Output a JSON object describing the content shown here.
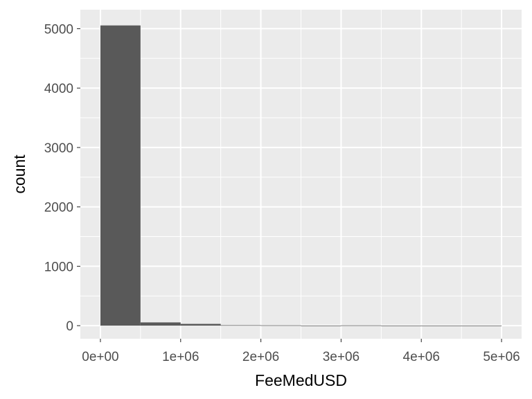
{
  "chart_data": {
    "type": "bar",
    "subtype": "histogram",
    "xlabel": "FeeMedUSD",
    "ylabel": "count",
    "bin_width": 500000,
    "bins": [
      {
        "x_start": 0,
        "x_end": 500000,
        "count": 5055
      },
      {
        "x_start": 500000,
        "x_end": 1000000,
        "count": 55
      },
      {
        "x_start": 1000000,
        "x_end": 1500000,
        "count": 30
      },
      {
        "x_start": 1500000,
        "x_end": 2000000,
        "count": 8
      },
      {
        "x_start": 2000000,
        "x_end": 2500000,
        "count": 6
      },
      {
        "x_start": 2500000,
        "x_end": 3000000,
        "count": 1
      },
      {
        "x_start": 3000000,
        "x_end": 3500000,
        "count": 5
      },
      {
        "x_start": 3500000,
        "x_end": 4000000,
        "count": 1
      },
      {
        "x_start": 4000000,
        "x_end": 4500000,
        "count": 1
      },
      {
        "x_start": 4500000,
        "x_end": 5000000,
        "count": 1
      }
    ],
    "xlim": [
      -250000,
      5250000
    ],
    "ylim": [
      -220,
      5320
    ],
    "x_ticks": [
      {
        "value": 0,
        "label": "0e+00"
      },
      {
        "value": 1000000,
        "label": "1e+06"
      },
      {
        "value": 2000000,
        "label": "2e+06"
      },
      {
        "value": 3000000,
        "label": "3e+06"
      },
      {
        "value": 4000000,
        "label": "4e+06"
      },
      {
        "value": 5000000,
        "label": "5e+06"
      }
    ],
    "y_ticks": [
      {
        "value": 0,
        "label": "0"
      },
      {
        "value": 1000,
        "label": "1000"
      },
      {
        "value": 2000,
        "label": "2000"
      },
      {
        "value": 3000,
        "label": "3000"
      },
      {
        "value": 4000,
        "label": "4000"
      },
      {
        "value": 5000,
        "label": "5000"
      }
    ],
    "grid": true,
    "colors": {
      "panel": "#ebebeb",
      "grid": "#ffffff",
      "bar": "#595959",
      "tick": "#333333"
    }
  }
}
